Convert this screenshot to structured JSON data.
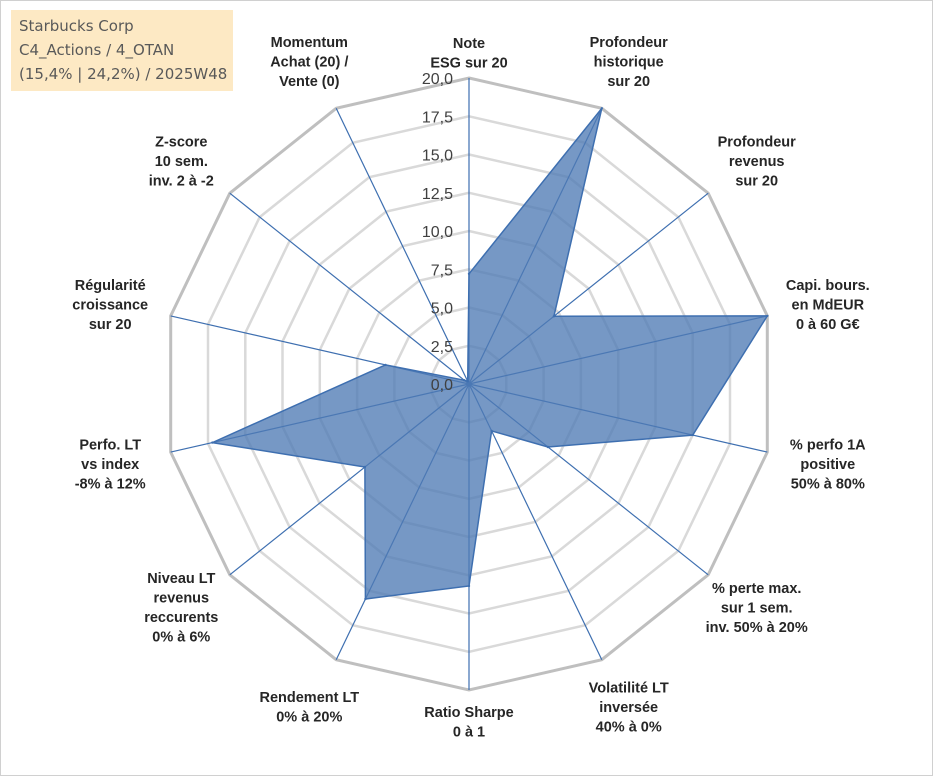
{
  "title_box": {
    "line1": "Starbucks Corp",
    "line2": "C4_Actions / 4_OTAN",
    "line3": "(15,4% | 24,2%) / 2025W48",
    "background": "#fde9c4"
  },
  "chart_data": {
    "type": "radar",
    "rmin": 0,
    "rmax": 20,
    "tick_values": [
      0,
      2.5,
      5,
      7.5,
      10,
      12.5,
      15,
      17.5,
      20
    ],
    "tick_labels": [
      "0,0",
      "2,5",
      "5,0",
      "7,5",
      "10,0",
      "12,5",
      "15,0",
      "17,5",
      "20,0"
    ],
    "grid": true,
    "fill_color": "#4f7bb5",
    "line_color": "#3e6fb0",
    "grid_color": "#bfbfbf",
    "axes": [
      {
        "label": [
          "Note",
          "ESG sur 20"
        ],
        "value": 7.2
      },
      {
        "label": [
          "Profondeur",
          "historique",
          "sur 20"
        ],
        "value": 20
      },
      {
        "label": [
          "Profondeur",
          "revenus",
          "sur 20"
        ],
        "value": 7.1
      },
      {
        "label": [
          "Capi. bours.",
          "en MdEUR",
          "0 à 60 G€"
        ],
        "value": 20
      },
      {
        "label": [
          "% perfo 1A",
          "positive",
          "50% à 80%"
        ],
        "value": 15
      },
      {
        "label": [
          "% perte max.",
          "sur 1 sem.",
          "inv. 50% à 20%"
        ],
        "value": 6.6
      },
      {
        "label": [
          "Volatilité LT",
          "inversée",
          "40% à 0%"
        ],
        "value": 3.4
      },
      {
        "label": [
          "Ratio Sharpe",
          "0 à 1"
        ],
        "value": 13.2
      },
      {
        "label": [
          "Rendement LT",
          "0% à 20%"
        ],
        "value": 15.6
      },
      {
        "label": [
          "Niveau LT",
          "revenus",
          "reccurents",
          "0% à 6%"
        ],
        "value": 8.7
      },
      {
        "label": [
          "Perfo. LT",
          "vs index",
          "-8% à 12%"
        ],
        "value": 17.2
      },
      {
        "label": [
          "Régularité",
          "croissance",
          "sur 20"
        ],
        "value": 5.6
      },
      {
        "label": [
          "Z-score",
          "10 sem.",
          "inv. 2 à -2"
        ],
        "value": 0.4
      },
      {
        "label": [
          "Momentum",
          "Achat (20) /",
          "Vente (0)"
        ],
        "value": 0.2
      }
    ]
  }
}
